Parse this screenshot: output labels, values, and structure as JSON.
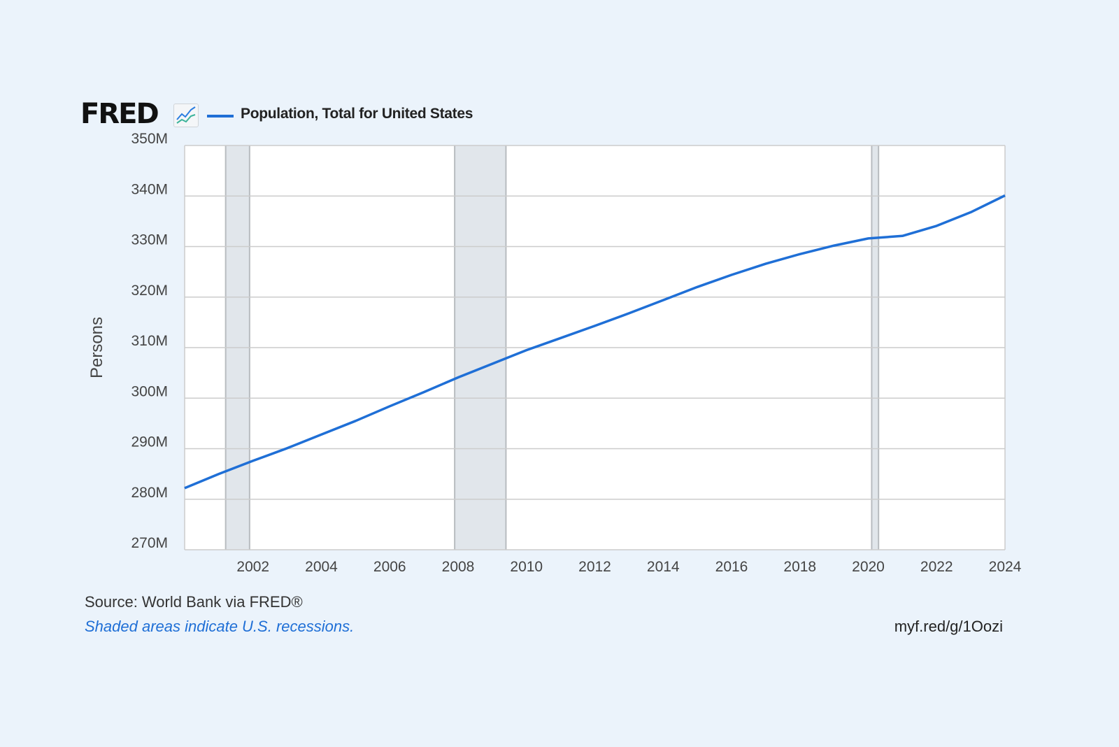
{
  "header": {
    "logo": "FRED",
    "legend_label": "Population, Total for United States"
  },
  "footer": {
    "source": "Source: World Bank via FRED®",
    "note": "Shaded areas indicate U.S. recessions.",
    "link": "myf.red/g/1Oozi"
  },
  "colors": {
    "line": "#1f6fd6",
    "recession": "#e1e6eb",
    "grid": "#cccccc",
    "background": "#ebf3fb"
  },
  "chart_data": {
    "type": "line",
    "title": "Population, Total for United States",
    "xlabel": "",
    "ylabel": "Persons",
    "xlim": [
      2000,
      2024
    ],
    "ylim": [
      270,
      350
    ],
    "x_ticks": [
      "2002",
      "2004",
      "2006",
      "2008",
      "2010",
      "2012",
      "2014",
      "2016",
      "2018",
      "2020",
      "2022",
      "2024"
    ],
    "y_ticks": [
      "270M",
      "280M",
      "290M",
      "300M",
      "310M",
      "320M",
      "330M",
      "340M",
      "350M"
    ],
    "grid": true,
    "recessions": [
      [
        2001.2,
        2001.9
      ],
      [
        2007.9,
        2009.4
      ],
      [
        2020.1,
        2020.3
      ]
    ],
    "series": [
      {
        "name": "Population, Total for United States",
        "unit": "millions",
        "x": [
          2000,
          2001,
          2002,
          2003,
          2004,
          2005,
          2006,
          2007,
          2008,
          2009,
          2010,
          2011,
          2012,
          2013,
          2014,
          2015,
          2016,
          2017,
          2018,
          2019,
          2020,
          2021,
          2022,
          2023,
          2024
        ],
        "values": [
          282.2,
          285.0,
          287.6,
          290.1,
          292.8,
          295.5,
          298.4,
          301.2,
          304.1,
          306.8,
          309.5,
          311.9,
          314.3,
          316.8,
          319.4,
          322.0,
          324.4,
          326.6,
          328.5,
          330.2,
          331.6,
          332.1,
          334.1,
          336.8,
          340.1
        ]
      }
    ]
  }
}
